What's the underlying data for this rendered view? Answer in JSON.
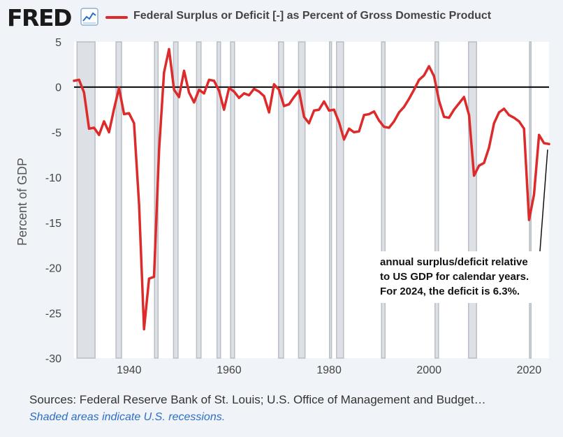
{
  "header": {
    "logo": "FRED",
    "logo_icon": "line-chart-icon",
    "legend_label": "Federal Surplus or Deficit [-] as Percent of Gross Domestic Product"
  },
  "footer": {
    "sources": "Sources: Federal Reserve Bank of St. Louis; U.S. Office of Management and Budget…",
    "shaded_note": "Shaded areas indicate U.S. recessions."
  },
  "colors": {
    "line": "#dd2a2a",
    "recession": "#dde1e6",
    "recession_edge": "#b9bec6",
    "plot_bg": "#ffffff",
    "zero_line": "#000000"
  },
  "chart_data": {
    "type": "line",
    "title": "Federal Surplus or Deficit [-] as Percent of Gross Domestic Product",
    "xlabel": "",
    "ylabel": "Percent of GDP",
    "xlim": [
      1929,
      2024
    ],
    "ylim": [
      -30,
      5
    ],
    "xticks": [
      1940,
      1960,
      1980,
      2000,
      2020
    ],
    "yticks": [
      5,
      0,
      -5,
      -10,
      -15,
      -20,
      -25,
      -30
    ],
    "grid": false,
    "reference_line": 0,
    "recessions": [
      [
        1929.6,
        1933.2
      ],
      [
        1937.4,
        1938.5
      ],
      [
        1945.1,
        1945.8
      ],
      [
        1948.9,
        1949.8
      ],
      [
        1953.5,
        1954.4
      ],
      [
        1957.6,
        1958.3
      ],
      [
        1960.3,
        1961.1
      ],
      [
        1969.9,
        1970.9
      ],
      [
        1973.9,
        1975.2
      ],
      [
        1980.1,
        1980.5
      ],
      [
        1981.5,
        1982.9
      ],
      [
        1990.5,
        1991.2
      ],
      [
        2001.2,
        2001.9
      ],
      [
        2007.9,
        2009.5
      ],
      [
        2020.1,
        2020.4
      ]
    ],
    "annotation": {
      "lines": [
        "annual surplus/deficit relative",
        "to US GDP for calendar years.",
        "For 2024, the deficit is 6.3%."
      ],
      "target_x": 2024,
      "target_y": -6.3
    },
    "series": [
      {
        "name": "Federal Surplus or Deficit [-] as Percent of Gross Domestic Product",
        "x": [
          1929,
          1930,
          1931,
          1932,
          1933,
          1934,
          1935,
          1936,
          1937,
          1938,
          1939,
          1940,
          1941,
          1942,
          1943,
          1944,
          1945,
          1946,
          1947,
          1948,
          1949,
          1950,
          1951,
          1952,
          1953,
          1954,
          1955,
          1956,
          1957,
          1958,
          1959,
          1960,
          1961,
          1962,
          1963,
          1964,
          1965,
          1966,
          1967,
          1968,
          1969,
          1970,
          1971,
          1972,
          1973,
          1974,
          1975,
          1976,
          1977,
          1978,
          1979,
          1980,
          1981,
          1982,
          1983,
          1984,
          1985,
          1986,
          1987,
          1988,
          1989,
          1990,
          1991,
          1992,
          1993,
          1994,
          1995,
          1996,
          1997,
          1998,
          1999,
          2000,
          2001,
          2002,
          2003,
          2004,
          2005,
          2006,
          2007,
          2008,
          2009,
          2010,
          2011,
          2012,
          2013,
          2014,
          2015,
          2016,
          2017,
          2018,
          2019,
          2020,
          2021,
          2022,
          2023,
          2024
        ],
        "values": [
          0.7,
          0.8,
          -0.6,
          -4.6,
          -4.5,
          -5.3,
          -3.8,
          -5.0,
          -2.4,
          -0.1,
          -3.0,
          -2.9,
          -4.0,
          -13.0,
          -26.8,
          -21.2,
          -21.0,
          -7.0,
          1.6,
          4.2,
          -0.3,
          -1.1,
          1.8,
          -0.6,
          -1.7,
          -0.3,
          -0.7,
          0.8,
          0.7,
          -0.4,
          -2.5,
          -0.1,
          -0.5,
          -1.2,
          -0.7,
          -0.9,
          -0.2,
          -0.5,
          -1.0,
          -2.8,
          0.3,
          -0.3,
          -2.1,
          -1.9,
          -1.1,
          -0.4,
          -3.3,
          -4.0,
          -2.6,
          -2.5,
          -1.6,
          -2.6,
          -2.5,
          -3.9,
          -5.8,
          -4.6,
          -5.0,
          -4.9,
          -3.1,
          -3.0,
          -2.7,
          -3.7,
          -4.4,
          -4.5,
          -3.8,
          -2.8,
          -2.2,
          -1.3,
          -0.3,
          0.8,
          1.3,
          2.3,
          1.2,
          -1.5,
          -3.3,
          -3.4,
          -2.5,
          -1.8,
          -1.1,
          -3.1,
          -9.8,
          -8.7,
          -8.4,
          -6.7,
          -4.0,
          -2.8,
          -2.4,
          -3.1,
          -3.4,
          -3.8,
          -4.6,
          -14.7,
          -11.9,
          -5.3,
          -6.2,
          -6.3
        ]
      }
    ]
  }
}
